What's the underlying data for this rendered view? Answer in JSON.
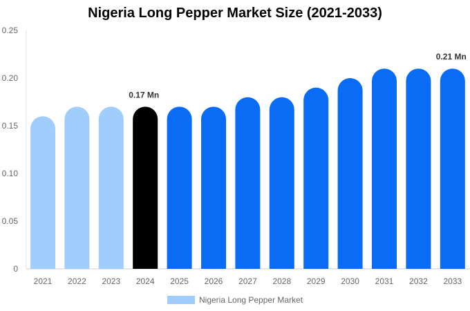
{
  "chart_data": {
    "type": "bar",
    "title": "Nigeria Long Pepper Market Size (2021-2033)",
    "categories": [
      "2021",
      "2022",
      "2023",
      "2024",
      "2025",
      "2026",
      "2027",
      "2028",
      "2029",
      "2030",
      "2031",
      "2032",
      "2033"
    ],
    "series": [
      {
        "name": "Nigeria Long Pepper Market",
        "values": [
          0.16,
          0.17,
          0.17,
          0.17,
          0.17,
          0.17,
          0.18,
          0.18,
          0.19,
          0.2,
          0.21,
          0.21,
          0.21
        ]
      }
    ],
    "bar_colors": [
      "#a0cdfc",
      "#a0cdfc",
      "#a0cdfc",
      "#000000",
      "#0a6cf5",
      "#0a6cf5",
      "#0a6cf5",
      "#0a6cf5",
      "#0a6cf5",
      "#0a6cf5",
      "#0a6cf5",
      "#0a6cf5",
      "#0a6cf5"
    ],
    "legend_color": "#a0cdfc",
    "y_ticks": [
      "0",
      "0.05",
      "0.10",
      "0.15",
      "0.20",
      "0.25"
    ],
    "ylim": [
      0,
      0.25
    ],
    "data_labels": [
      {
        "index": 3,
        "text": "0.17 Mn"
      },
      {
        "index": 12,
        "text": "0.21 Mn"
      }
    ],
    "xlabel": "",
    "ylabel": "",
    "grid": false,
    "legend_position": "bottom"
  }
}
